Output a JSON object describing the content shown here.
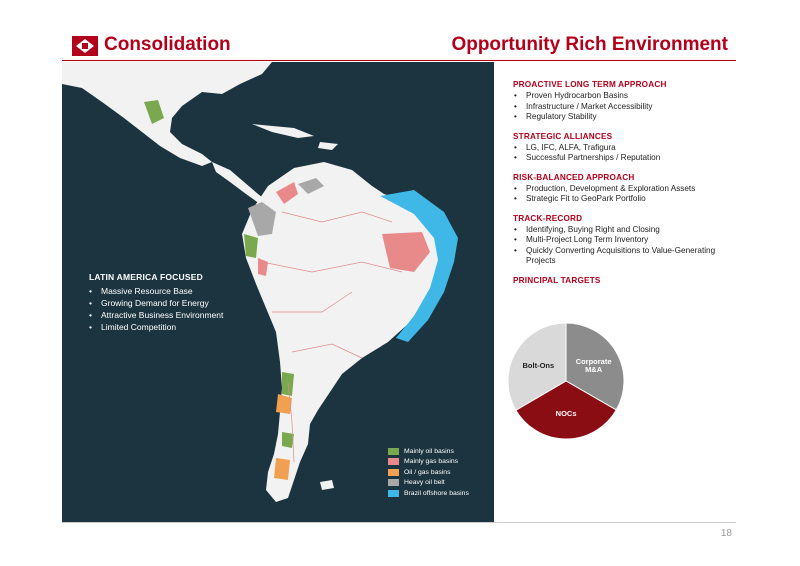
{
  "header": {
    "left_title": "Consolidation",
    "right_title": "Opportunity Rich Environment"
  },
  "map": {
    "panel": {
      "title": "LATIN AMERICA FOCUSED",
      "items": [
        "Massive Resource Base",
        "Growing Demand for Energy",
        "Attractive Business Environment",
        "Limited Competition"
      ]
    },
    "legend": [
      {
        "label": "Mainly oil basins",
        "color": "#79a84f"
      },
      {
        "label": "Mainly gas basins",
        "color": "#e98a8a"
      },
      {
        "label": "Oil / gas basins",
        "color": "#f0a050"
      },
      {
        "label": "Heavy oil belt",
        "color": "#a8a8a8"
      },
      {
        "label": "Brazil offshore basins",
        "color": "#3fb8e8"
      }
    ]
  },
  "sections": [
    {
      "title": "PROACTIVE LONG TERM APPROACH",
      "items": [
        "Proven Hydrocarbon Basins",
        "Infrastructure / Market Accessibility",
        "Regulatory Stability"
      ]
    },
    {
      "title": "STRATEGIC ALLIANCES",
      "items": [
        "LG, IFC, ALFA, Trafigura",
        "Successful Partnerships / Reputation"
      ]
    },
    {
      "title": "RISK-BALANCED APPROACH",
      "items": [
        "Production, Development & Exploration Assets",
        "Strategic Fit to GeoPark Portfolio"
      ]
    },
    {
      "title": "TRACK-RECORD",
      "items": [
        "Identifying, Buying Right and Closing",
        "Multi-Project Long Term Inventory",
        "Quickly Converting Acquisitions to Value-Generating Projects"
      ]
    },
    {
      "title": "PRINCIPAL TARGETS",
      "items": []
    }
  ],
  "chart_data": {
    "type": "pie",
    "title": "",
    "slices": [
      {
        "label": "Corporate M&A",
        "value": 33.3,
        "color": "#8c8c8c"
      },
      {
        "label": "NOCs",
        "value": 33.3,
        "color": "#8b0d14"
      },
      {
        "label": "Bolt-Ons",
        "value": 33.4,
        "color": "#d9d9d9"
      }
    ]
  },
  "footer": {
    "page_number": "18"
  }
}
